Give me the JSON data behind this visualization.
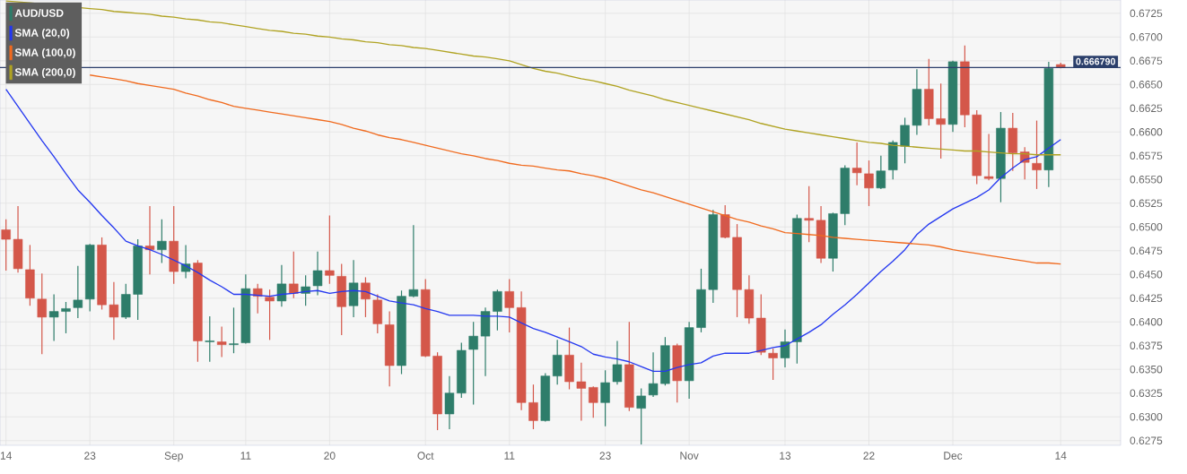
{
  "chart_data": {
    "type": "candlestick",
    "categories": [
      "14",
      null,
      null,
      null,
      null,
      null,
      null,
      "23",
      null,
      null,
      null,
      null,
      null,
      null,
      "Sep",
      null,
      null,
      null,
      null,
      null,
      "11",
      null,
      null,
      null,
      null,
      null,
      null,
      "20",
      null,
      null,
      null,
      null,
      null,
      null,
      null,
      "Oct",
      null,
      null,
      null,
      null,
      null,
      null,
      "11",
      null,
      null,
      null,
      null,
      null,
      null,
      null,
      "23",
      null,
      null,
      null,
      null,
      null,
      null,
      "Nov",
      null,
      null,
      null,
      null,
      null,
      null,
      null,
      "13",
      null,
      null,
      null,
      null,
      null,
      null,
      "22",
      null,
      null,
      null,
      null,
      null,
      null,
      "Dec",
      null,
      null,
      null,
      null,
      null,
      null,
      null,
      null,
      "14"
    ],
    "series": [
      {
        "name": "AUD/USD",
        "color": "#2e7d6a",
        "colors": [
          "#d4574a",
          "#d4574a",
          "#d4574a",
          "#d4574a",
          "#2e7d6a",
          "#2e7d6a",
          "#2e7d6a",
          "#2e7d6a",
          "#d4574a",
          "#d4574a",
          "#2e7d6a",
          "#2e7d6a",
          "#d4574a",
          "#2e7d6a",
          "#d4574a",
          "#2e7d6a",
          "#d4574a",
          "#2e7d6a",
          "#d4574a",
          "#2e7d6a",
          "#2e7d6a",
          "#d4574a",
          "#d4574a",
          "#2e7d6a",
          "#d4574a",
          "#2e7d6a",
          "#2e7d6a",
          "#d4574a",
          "#d4574a",
          "#2e7d6a",
          "#d4574a",
          "#d4574a",
          "#d4574a",
          "#2e7d6a",
          "#2e7d6a",
          "#d4574a",
          "#d4574a",
          "#2e7d6a",
          "#2e7d6a",
          "#2e7d6a",
          "#2e7d6a",
          "#2e7d6a",
          "#d4574a",
          "#d4574a",
          "#d4574a",
          "#2e7d6a",
          "#2e7d6a",
          "#d4574a",
          "#d4574a",
          "#d4574a",
          "#2e7d6a",
          "#2e7d6a",
          "#d4574a",
          "#2e7d6a",
          "#2e7d6a",
          "#2e7d6a",
          "#d4574a",
          "#2e7d6a",
          "#2e7d6a",
          "#2e7d6a",
          "#d4574a",
          "#d4574a",
          "#d4574a",
          "#d4574a",
          "#d4574a",
          "#2e7d6a",
          "#2e7d6a",
          "#d4574a",
          "#d4574a",
          "#2e7d6a",
          "#2e7d6a",
          "#d4574a",
          "#d4574a",
          "#2e7d6a",
          "#2e7d6a",
          "#2e7d6a",
          "#2e7d6a",
          "#d4574a",
          "#d4574a",
          "#2e7d6a",
          "#d4574a",
          "#d4574a",
          "#d4574a",
          "#2e7d6a",
          "#d4574a",
          "#d4574a",
          "#d4574a",
          "#2e7d6a",
          "#d4574a"
        ],
        "ohlc": [
          [
            0.6497,
            0.6508,
            0.6454,
            0.6487
          ],
          [
            0.6487,
            0.6522,
            0.6452,
            0.6456
          ],
          [
            0.6455,
            0.6481,
            0.6417,
            0.6425
          ],
          [
            0.6424,
            0.6451,
            0.6366,
            0.6405
          ],
          [
            0.6405,
            0.6429,
            0.638,
            0.6411
          ],
          [
            0.6411,
            0.6421,
            0.6388,
            0.6414
          ],
          [
            0.6415,
            0.6459,
            0.6404,
            0.6423
          ],
          [
            0.6424,
            0.6482,
            0.6411,
            0.6481
          ],
          [
            0.6481,
            0.6489,
            0.6413,
            0.6418
          ],
          [
            0.6418,
            0.6442,
            0.6381,
            0.6405
          ],
          [
            0.6405,
            0.644,
            0.6403,
            0.6429
          ],
          [
            0.6429,
            0.6487,
            0.6402,
            0.648
          ],
          [
            0.648,
            0.6522,
            0.645,
            0.6476
          ],
          [
            0.6476,
            0.6508,
            0.6462,
            0.6485
          ],
          [
            0.6485,
            0.6522,
            0.644,
            0.6453
          ],
          [
            0.6453,
            0.6481,
            0.6446,
            0.6461
          ],
          [
            0.6462,
            0.6465,
            0.6358,
            0.638
          ],
          [
            0.6379,
            0.6406,
            0.6358,
            0.638
          ],
          [
            0.6379,
            0.6395,
            0.6363,
            0.6376
          ],
          [
            0.6376,
            0.6415,
            0.6367,
            0.6377
          ],
          [
            0.6378,
            0.645,
            0.6377,
            0.6435
          ],
          [
            0.6435,
            0.644,
            0.6409,
            0.6427
          ],
          [
            0.6426,
            0.6434,
            0.6381,
            0.6422
          ],
          [
            0.6422,
            0.646,
            0.6416,
            0.644
          ],
          [
            0.644,
            0.6474,
            0.6425,
            0.643
          ],
          [
            0.643,
            0.6449,
            0.6417,
            0.6437
          ],
          [
            0.6438,
            0.6474,
            0.6428,
            0.6454
          ],
          [
            0.6454,
            0.6512,
            0.644,
            0.6449
          ],
          [
            0.6448,
            0.6461,
            0.6386,
            0.6416
          ],
          [
            0.6417,
            0.6465,
            0.6405,
            0.6441
          ],
          [
            0.6441,
            0.6447,
            0.6405,
            0.6424
          ],
          [
            0.6423,
            0.6429,
            0.6388,
            0.6398
          ],
          [
            0.6397,
            0.6411,
            0.6332,
            0.6354
          ],
          [
            0.6354,
            0.6433,
            0.6345,
            0.6427
          ],
          [
            0.6427,
            0.6502,
            0.6426,
            0.6434
          ],
          [
            0.6434,
            0.6445,
            0.6363,
            0.6364
          ],
          [
            0.6364,
            0.6368,
            0.6286,
            0.6303
          ],
          [
            0.6303,
            0.6343,
            0.6287,
            0.6325
          ],
          [
            0.6325,
            0.6378,
            0.632,
            0.637
          ],
          [
            0.6371,
            0.64,
            0.6313,
            0.6385
          ],
          [
            0.6385,
            0.6415,
            0.6343,
            0.6411
          ],
          [
            0.6411,
            0.6434,
            0.6391,
            0.6432
          ],
          [
            0.6432,
            0.6445,
            0.6389,
            0.6415
          ],
          [
            0.6415,
            0.6432,
            0.6307,
            0.6315
          ],
          [
            0.6315,
            0.6334,
            0.6287,
            0.6296
          ],
          [
            0.6296,
            0.6346,
            0.6295,
            0.6343
          ],
          [
            0.6343,
            0.6381,
            0.6334,
            0.6365
          ],
          [
            0.6365,
            0.6394,
            0.6329,
            0.6337
          ],
          [
            0.6337,
            0.6357,
            0.6296,
            0.633
          ],
          [
            0.6331,
            0.6332,
            0.6299,
            0.6315
          ],
          [
            0.6315,
            0.6349,
            0.629,
            0.6336
          ],
          [
            0.6337,
            0.638,
            0.6334,
            0.6355
          ],
          [
            0.6355,
            0.64,
            0.6306,
            0.631
          ],
          [
            0.6309,
            0.633,
            0.6271,
            0.6322
          ],
          [
            0.6323,
            0.6368,
            0.6321,
            0.6335
          ],
          [
            0.6335,
            0.6384,
            0.6333,
            0.6375
          ],
          [
            0.6375,
            0.6377,
            0.6315,
            0.6338
          ],
          [
            0.6338,
            0.64,
            0.6319,
            0.6394
          ],
          [
            0.6394,
            0.6456,
            0.6389,
            0.6434
          ],
          [
            0.6434,
            0.6518,
            0.642,
            0.6513
          ],
          [
            0.6513,
            0.6523,
            0.6488,
            0.6489
          ],
          [
            0.6489,
            0.6503,
            0.6405,
            0.6434
          ],
          [
            0.6434,
            0.6449,
            0.6398,
            0.6404
          ],
          [
            0.6404,
            0.6429,
            0.6365,
            0.6368
          ],
          [
            0.6367,
            0.6372,
            0.6339,
            0.6362
          ],
          [
            0.6362,
            0.6392,
            0.6352,
            0.6379
          ],
          [
            0.6379,
            0.6513,
            0.6356,
            0.6509
          ],
          [
            0.6509,
            0.6543,
            0.6484,
            0.6507
          ],
          [
            0.6507,
            0.6522,
            0.6462,
            0.6467
          ],
          [
            0.6467,
            0.6515,
            0.6453,
            0.6514
          ],
          [
            0.6514,
            0.6565,
            0.6502,
            0.6562
          ],
          [
            0.6562,
            0.6589,
            0.6544,
            0.6557
          ],
          [
            0.6556,
            0.657,
            0.6522,
            0.6541
          ],
          [
            0.6541,
            0.6575,
            0.654,
            0.6559
          ],
          [
            0.656,
            0.6591,
            0.655,
            0.6589
          ],
          [
            0.6585,
            0.6615,
            0.6567,
            0.6607
          ],
          [
            0.6607,
            0.6666,
            0.6597,
            0.6645
          ],
          [
            0.6645,
            0.6677,
            0.6607,
            0.6614
          ],
          [
            0.6614,
            0.6651,
            0.6572,
            0.6608
          ],
          [
            0.6608,
            0.6675,
            0.66,
            0.6674
          ],
          [
            0.6674,
            0.6691,
            0.6605,
            0.6618
          ],
          [
            0.6618,
            0.6623,
            0.6545,
            0.6554
          ],
          [
            0.6553,
            0.6598,
            0.6549,
            0.6551
          ],
          [
            0.6551,
            0.6621,
            0.6526,
            0.6604
          ],
          [
            0.6604,
            0.662,
            0.6559,
            0.6578
          ],
          [
            0.6579,
            0.6584,
            0.655,
            0.6568
          ],
          [
            0.6567,
            0.6612,
            0.654,
            0.656
          ],
          [
            0.656,
            0.6674,
            0.6542,
            0.6667
          ],
          [
            0.6671,
            0.6673,
            0.6667,
            0.66679
          ]
        ]
      },
      {
        "name": "SMA (20,0)",
        "type": "line",
        "color": "#2438f0",
        "values": [
          0.6645,
          0.6627,
          0.6609,
          0.6591,
          0.6574,
          0.6556,
          0.6539,
          0.6526,
          0.6512,
          0.6499,
          0.6485,
          0.648,
          0.6476,
          0.6471,
          0.6465,
          0.6459,
          0.6452,
          0.6444,
          0.6437,
          0.6429,
          0.6429,
          0.6428,
          0.6427,
          0.6429,
          0.643,
          0.6432,
          0.6433,
          0.643,
          0.6432,
          0.6433,
          0.6432,
          0.6427,
          0.6422,
          0.642,
          0.6418,
          0.6414,
          0.6411,
          0.6407,
          0.6407,
          0.6407,
          0.6406,
          0.6406,
          0.6405,
          0.6399,
          0.6393,
          0.6389,
          0.6384,
          0.6379,
          0.6374,
          0.6366,
          0.6363,
          0.6361,
          0.6358,
          0.6353,
          0.6348,
          0.6348,
          0.6352,
          0.6355,
          0.6357,
          0.6364,
          0.6367,
          0.6367,
          0.6367,
          0.637,
          0.6373,
          0.6375,
          0.6382,
          0.6389,
          0.6397,
          0.6408,
          0.6418,
          0.6429,
          0.6441,
          0.6453,
          0.6464,
          0.6476,
          0.6492,
          0.6503,
          0.6511,
          0.6519,
          0.6525,
          0.6531,
          0.6539,
          0.6552,
          0.6562,
          0.6571,
          0.6574,
          0.6583,
          0.6592
        ]
      },
      {
        "name": "SMA (100,0)",
        "type": "line",
        "color": "#f06a1e",
        "values": [
          null,
          null,
          null,
          null,
          null,
          null,
          null,
          0.666,
          0.6658,
          0.6656,
          0.6654,
          0.6651,
          0.6649,
          0.6647,
          0.6645,
          0.6641,
          0.6638,
          0.6634,
          0.6631,
          0.6627,
          0.6625,
          0.6623,
          0.6621,
          0.6619,
          0.6617,
          0.6615,
          0.6613,
          0.6611,
          0.6608,
          0.6604,
          0.6601,
          0.6597,
          0.6594,
          0.6592,
          0.6589,
          0.6586,
          0.6583,
          0.658,
          0.6577,
          0.6575,
          0.6572,
          0.657,
          0.6567,
          0.6565,
          0.6564,
          0.6562,
          0.656,
          0.6559,
          0.6556,
          0.6554,
          0.6551,
          0.6547,
          0.6543,
          0.6539,
          0.6536,
          0.6532,
          0.6528,
          0.6524,
          0.652,
          0.6516,
          0.6512,
          0.6508,
          0.6505,
          0.6501,
          0.6498,
          0.6494,
          0.6493,
          0.6492,
          0.6491,
          0.6489,
          0.6488,
          0.6487,
          0.6486,
          0.6485,
          0.6484,
          0.6483,
          0.6482,
          0.6481,
          0.6479,
          0.6476,
          0.6474,
          0.6472,
          0.647,
          0.6468,
          0.6466,
          0.6464,
          0.6462,
          0.6462,
          0.6461
        ]
      },
      {
        "name": "SMA (200,0)",
        "type": "line",
        "color": "#b0a322",
        "values": [
          0.6738,
          0.6737,
          0.6736,
          null,
          null,
          null,
          null,
          0.673,
          0.6729,
          0.6727,
          0.6726,
          0.6725,
          0.6724,
          0.6722,
          0.6721,
          0.6719,
          0.6718,
          0.6716,
          0.6715,
          0.6713,
          0.6711,
          0.6709,
          0.6707,
          0.6706,
          0.6704,
          0.6703,
          0.6701,
          0.67,
          0.6698,
          0.6697,
          0.6695,
          0.6694,
          0.6692,
          0.6691,
          0.6689,
          0.6688,
          0.6686,
          0.6684,
          0.6682,
          0.668,
          0.6679,
          0.6677,
          0.6675,
          0.6671,
          0.6667,
          0.6664,
          0.6662,
          0.6659,
          0.6656,
          0.6654,
          0.6651,
          0.6648,
          0.6644,
          0.6641,
          0.6638,
          0.6634,
          0.6631,
          0.6628,
          0.6625,
          0.6622,
          0.6619,
          0.6616,
          0.6613,
          0.6609,
          0.6606,
          0.6603,
          0.6601,
          0.6599,
          0.6597,
          0.6595,
          0.6593,
          0.6591,
          0.6589,
          0.6588,
          0.6586,
          0.6585,
          0.6584,
          0.6583,
          0.6582,
          0.6581,
          0.658,
          0.658,
          0.6579,
          0.6578,
          0.6577,
          0.6577,
          0.6576,
          0.6576,
          0.6576
        ]
      }
    ],
    "ylim": [
      0.627,
      0.6739
    ],
    "yticks": [
      0.6275,
      {
        "value": 0.63,
        "label": "0.6300"
      },
      0.6325,
      {
        "value": 0.635,
        "label": "0.6350"
      },
      0.6375,
      {
        "value": 0.64,
        "label": "0.6400"
      },
      0.6425,
      {
        "value": 0.645,
        "label": "0.6450"
      },
      0.6475,
      {
        "value": 0.65,
        "label": "0.6500"
      },
      0.6525,
      {
        "value": 0.655,
        "label": "0.6550"
      },
      0.6575,
      {
        "value": 0.66,
        "label": "0.6600"
      },
      0.6625,
      {
        "value": 0.665,
        "label": "0.6650"
      },
      0.6675,
      {
        "value": 0.67,
        "label": "0.6700"
      },
      0.6725
    ],
    "grid": true,
    "legend": "top left",
    "ref_lines": [
      {
        "axis": "y",
        "value": 0.66679,
        "label": "0.666790",
        "color": "#2b3f6b"
      }
    ]
  }
}
